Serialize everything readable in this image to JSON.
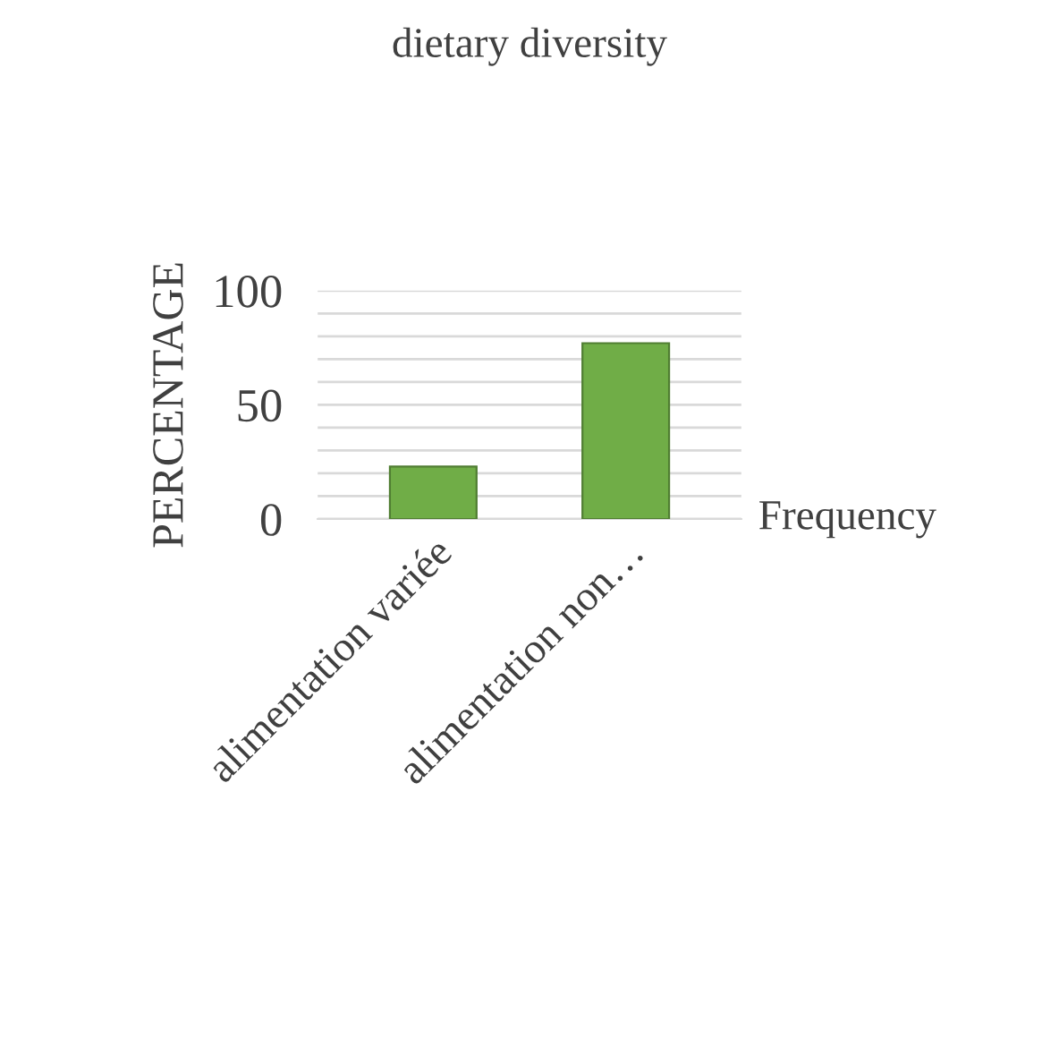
{
  "chart_data": {
    "type": "bar",
    "title": "dietary diversity",
    "ylabel": "PERCENTAGE",
    "categories": [
      "alimentation variée",
      "alimentation non…"
    ],
    "series": [
      {
        "name": "Frequency",
        "color": "#70ad47",
        "values": [
          23,
          77
        ]
      }
    ],
    "ylim": [
      0,
      100
    ],
    "yticks": [
      0,
      {
        "value": 10,
        "label": null
      },
      {
        "value": 20,
        "label": null
      },
      {
        "value": 30,
        "label": null
      },
      {
        "value": 40,
        "label": null
      },
      50,
      {
        "value": 60,
        "label": null
      },
      {
        "value": 70,
        "label": null
      },
      {
        "value": 80,
        "label": null
      },
      {
        "value": 90,
        "label": null
      },
      100
    ],
    "grid": "y"
  }
}
